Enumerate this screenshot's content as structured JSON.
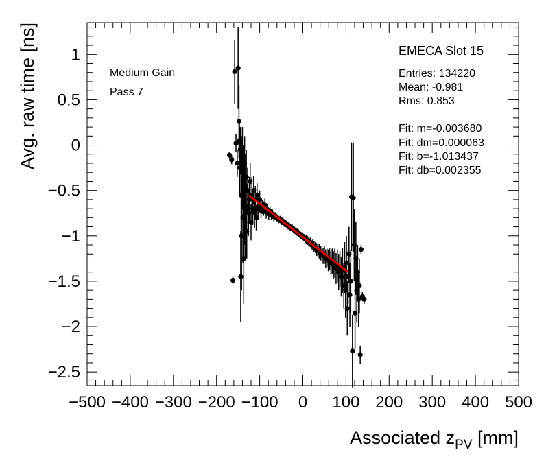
{
  "chart_data": {
    "type": "scatter",
    "xlabel": "Associated z",
    "xlabel_sub": "PV",
    "xlabel_unit": " [mm]",
    "ylabel": "Avg. raw time [ns]",
    "xlim": [
      -500,
      500
    ],
    "ylim": [
      -2.65,
      1.35
    ],
    "x_tick_labels": [
      "−500",
      "−400",
      "−300",
      "−200",
      "−100",
      "0",
      "100",
      "200",
      "300",
      "400",
      "500"
    ],
    "x_tick_values": [
      -500,
      -400,
      -300,
      -200,
      -100,
      0,
      100,
      200,
      300,
      400,
      500
    ],
    "y_tick_labels": [
      "1",
      "0.5",
      "0",
      "−0.5",
      "−1",
      "−1.5",
      "−2",
      "−2.5"
    ],
    "y_tick_values": [
      1,
      0.5,
      0,
      -0.5,
      -1,
      -1.5,
      -2,
      -2.5
    ],
    "grid": false,
    "annotations": {
      "gain": "Medium Gain",
      "pass": "Pass 7",
      "slot": "EMECA Slot 15",
      "entries": "Entries: 134220",
      "mean": "Mean: -0.981",
      "rms": "Rms: 0.853",
      "fit_m": "Fit: m=-0.003680",
      "fit_dm": "Fit: dm=0.000063",
      "fit_b": "Fit: b=-1.013437",
      "fit_db": "Fit: db=0.002355"
    },
    "fit_line": {
      "x": [
        -125,
        105
      ],
      "y": [
        -0.553,
        -1.4
      ],
      "color": "#e00000"
    },
    "series": [
      {
        "marker_color": "#000000",
        "points": [
          [
            -170,
            -0.11,
            0.03
          ],
          [
            -165,
            -0.16,
            0.05
          ],
          [
            -162,
            -1.49,
            0.04
          ],
          [
            -158,
            0.81,
            0.35
          ],
          [
            -155,
            0.02,
            0.1
          ],
          [
            -152,
            -0.2,
            0.15
          ],
          [
            -150,
            0.85,
            0.45
          ],
          [
            -148,
            0.26,
            0.4
          ],
          [
            -147,
            0.05,
            0.2
          ],
          [
            -146,
            -0.25,
            0.3
          ],
          [
            -145,
            -0.05,
            0.25
          ],
          [
            -144,
            -1.45,
            0.5
          ],
          [
            -143,
            -0.55,
            0.4
          ],
          [
            -142,
            -1.0,
            0.6
          ],
          [
            -141,
            -0.3,
            0.4
          ],
          [
            -140,
            -0.1,
            0.3
          ],
          [
            -139,
            -0.8,
            0.5
          ],
          [
            -138,
            -0.4,
            0.4
          ],
          [
            -137,
            -1.25,
            0.5
          ],
          [
            -136,
            -0.6,
            0.5
          ],
          [
            -135,
            -0.2,
            0.3
          ],
          [
            -134,
            -0.85,
            0.4
          ],
          [
            -133,
            -0.45,
            0.35
          ],
          [
            -132,
            -0.7,
            0.3
          ],
          [
            -131,
            -0.35,
            0.3
          ],
          [
            -130,
            -0.95,
            0.3
          ],
          [
            -128,
            -0.5,
            0.25
          ],
          [
            -126,
            -0.75,
            0.25
          ],
          [
            -124,
            -0.6,
            0.25
          ],
          [
            -122,
            -0.4,
            0.2
          ],
          [
            -120,
            -0.85,
            0.2
          ],
          [
            -118,
            -0.55,
            0.2
          ],
          [
            -116,
            -0.7,
            0.18
          ],
          [
            -114,
            -0.5,
            0.16
          ],
          [
            -112,
            -0.75,
            0.16
          ],
          [
            -110,
            -0.6,
            0.15
          ],
          [
            -108,
            -0.8,
            0.14
          ],
          [
            -106,
            -0.55,
            0.13
          ],
          [
            -104,
            -0.7,
            0.12
          ],
          [
            -102,
            -0.65,
            0.12
          ],
          [
            -100,
            -0.6,
            0.1
          ],
          [
            -97,
            -0.72,
            0.09
          ],
          [
            -94,
            -0.68,
            0.08
          ],
          [
            -91,
            -0.7,
            0.08
          ],
          [
            -88,
            -0.66,
            0.07
          ],
          [
            -85,
            -0.74,
            0.07
          ],
          [
            -82,
            -0.71,
            0.06
          ],
          [
            -79,
            -0.76,
            0.06
          ],
          [
            -76,
            -0.73,
            0.05
          ],
          [
            -73,
            -0.77,
            0.05
          ],
          [
            -70,
            -0.76,
            0.05
          ],
          [
            -67,
            -0.79,
            0.05
          ],
          [
            -64,
            -0.78,
            0.04
          ],
          [
            -61,
            -0.8,
            0.04
          ],
          [
            -58,
            -0.81,
            0.04
          ],
          [
            -55,
            -0.82,
            0.04
          ],
          [
            -52,
            -0.82,
            0.04
          ],
          [
            -49,
            -0.84,
            0.04
          ],
          [
            -46,
            -0.84,
            0.04
          ],
          [
            -43,
            -0.86,
            0.04
          ],
          [
            -40,
            -0.86,
            0.04
          ],
          [
            -37,
            -0.88,
            0.04
          ],
          [
            -34,
            -0.89,
            0.04
          ],
          [
            -31,
            -0.9,
            0.04
          ],
          [
            -28,
            -0.91,
            0.04
          ],
          [
            -25,
            -0.91,
            0.04
          ],
          [
            -22,
            -0.93,
            0.04
          ],
          [
            -19,
            -0.94,
            0.04
          ],
          [
            -16,
            -0.95,
            0.04
          ],
          [
            -13,
            -0.96,
            0.04
          ],
          [
            -10,
            -0.97,
            0.04
          ],
          [
            -7,
            -0.98,
            0.04
          ],
          [
            -4,
            -1.0,
            0.04
          ],
          [
            -1,
            -1.0,
            0.04
          ],
          [
            2,
            -1.02,
            0.04
          ],
          [
            5,
            -1.03,
            0.05
          ],
          [
            8,
            -1.04,
            0.05
          ],
          [
            11,
            -1.05,
            0.05
          ],
          [
            14,
            -1.07,
            0.05
          ],
          [
            17,
            -1.07,
            0.05
          ],
          [
            20,
            -1.1,
            0.05
          ],
          [
            23,
            -1.1,
            0.06
          ],
          [
            26,
            -1.12,
            0.06
          ],
          [
            29,
            -1.13,
            0.06
          ],
          [
            32,
            -1.15,
            0.07
          ],
          [
            35,
            -1.16,
            0.07
          ],
          [
            38,
            -1.17,
            0.08
          ],
          [
            41,
            -1.19,
            0.08
          ],
          [
            44,
            -1.2,
            0.08
          ],
          [
            47,
            -1.22,
            0.09
          ],
          [
            50,
            -1.21,
            0.1
          ],
          [
            53,
            -1.25,
            0.1
          ],
          [
            56,
            -1.24,
            0.1
          ],
          [
            59,
            -1.27,
            0.12
          ],
          [
            62,
            -1.26,
            0.12
          ],
          [
            65,
            -1.3,
            0.13
          ],
          [
            68,
            -1.28,
            0.14
          ],
          [
            71,
            -1.32,
            0.15
          ],
          [
            74,
            -1.3,
            0.16
          ],
          [
            77,
            -1.36,
            0.17
          ],
          [
            80,
            -1.33,
            0.18
          ],
          [
            83,
            -1.4,
            0.2
          ],
          [
            86,
            -1.37,
            0.2
          ],
          [
            89,
            -1.45,
            0.22
          ],
          [
            92,
            -1.38,
            0.25
          ],
          [
            95,
            -1.55,
            0.25
          ],
          [
            97,
            -1.35,
            0.28
          ],
          [
            99,
            -1.6,
            0.3
          ],
          [
            101,
            -1.3,
            0.3
          ],
          [
            103,
            -1.8,
            0.3
          ],
          [
            105,
            -1.45,
            0.3
          ],
          [
            107,
            -1.2,
            0.3
          ],
          [
            109,
            -1.65,
            0.35
          ],
          [
            111,
            -1.5,
            0.35
          ],
          [
            113,
            -0.57,
            0.6
          ],
          [
            115,
            -2.27,
            0.4
          ],
          [
            117,
            -0.58,
            0.6
          ],
          [
            119,
            -1.1,
            0.4
          ],
          [
            121,
            -1.85,
            0.4
          ],
          [
            123,
            -1.25,
            0.4
          ],
          [
            125,
            -1.6,
            0.35
          ],
          [
            127,
            -1.4,
            0.3
          ],
          [
            129,
            -1.7,
            0.3
          ],
          [
            131,
            -1.55,
            0.3
          ],
          [
            133,
            -2.31,
            0.1
          ],
          [
            135,
            -1.15,
            0.05
          ],
          [
            138,
            -1.67,
            0.05
          ],
          [
            142,
            -1.7,
            0.05
          ]
        ]
      }
    ]
  }
}
